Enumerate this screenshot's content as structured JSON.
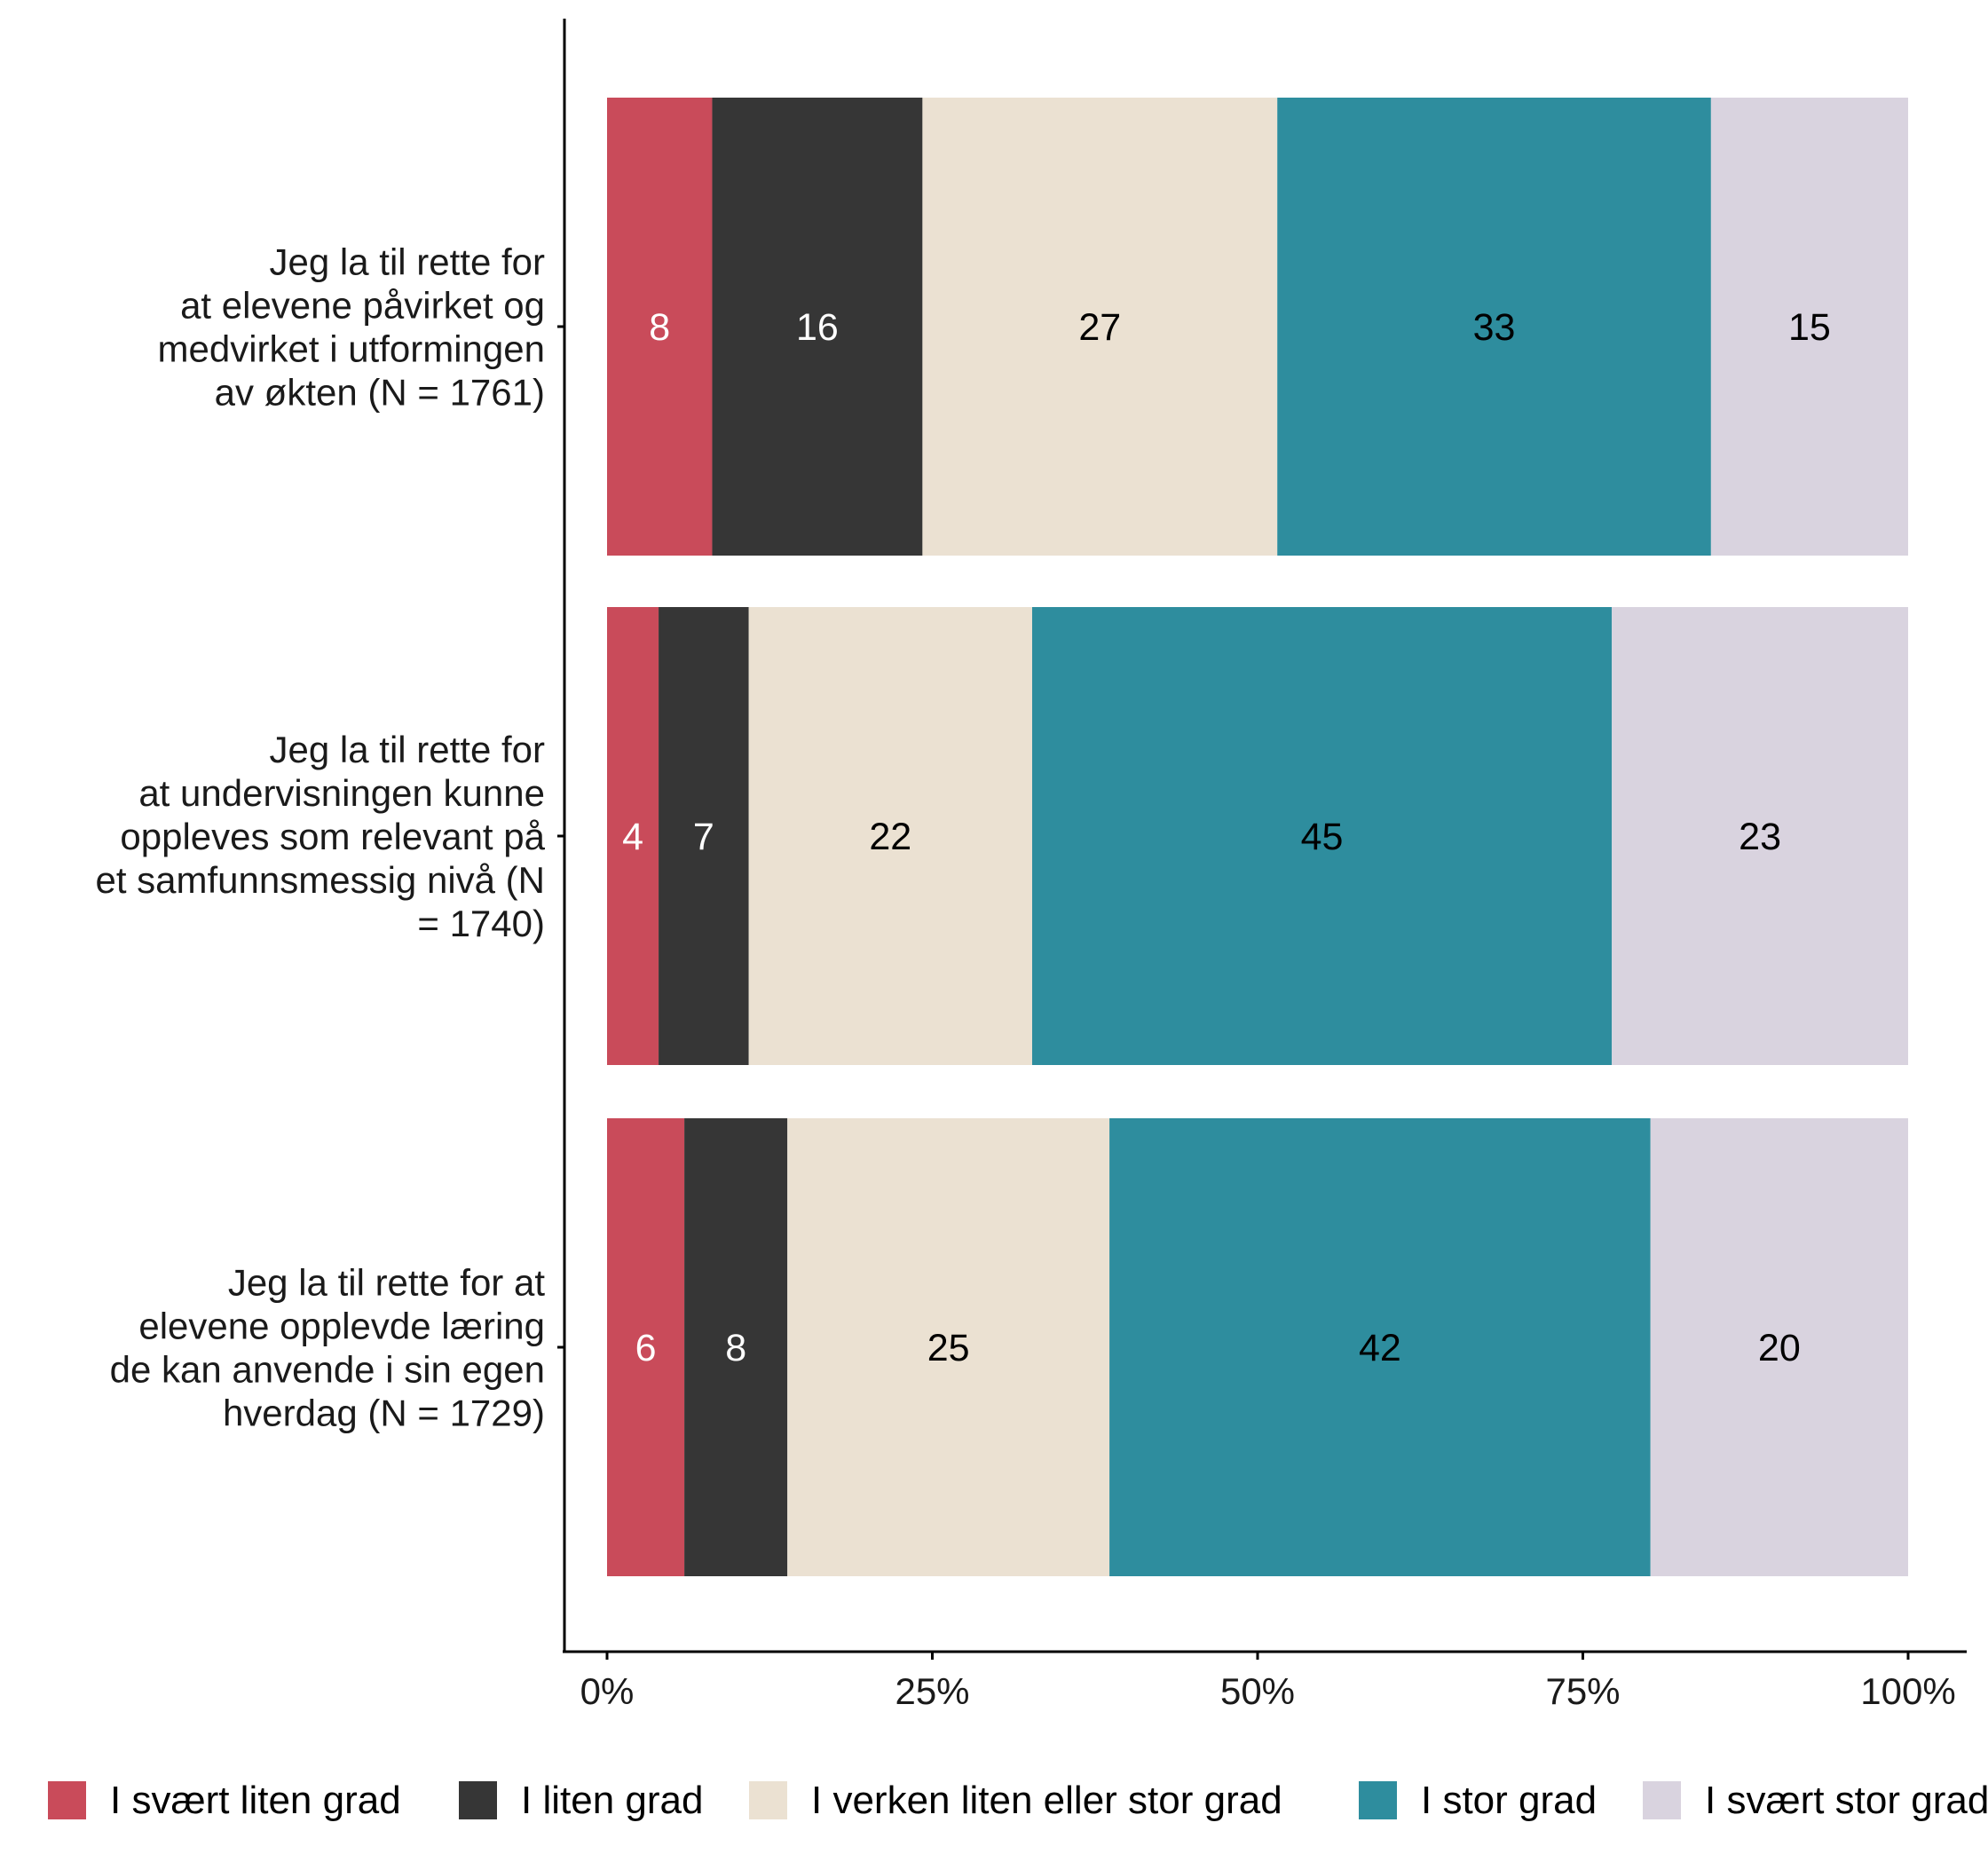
{
  "chart_data": {
    "type": "bar",
    "orientation": "horizontal",
    "stacked": true,
    "title": "",
    "xlabel": "",
    "ylabel": "",
    "xlim": [
      0,
      100
    ],
    "x_ticks": [
      "0%",
      "25%",
      "50%",
      "75%",
      "100%"
    ],
    "x_tick_values": [
      0,
      25,
      50,
      75,
      100
    ],
    "grid": false,
    "legend_position": "bottom",
    "categories": [
      [
        "Jeg la til rette for",
        "at elevene påvirket og",
        "medvirket i utformingen",
        "av økten (N = 1761)"
      ],
      [
        "Jeg la til rette for",
        "at undervisningen kunne",
        "oppleves som relevant på",
        "et samfunnsmessig nivå (N",
        "= 1740)"
      ],
      [
        "Jeg la til rette for at",
        "elevene opplevde læring",
        "de kan anvende i sin egen",
        "hverdag (N = 1729)"
      ]
    ],
    "series": [
      {
        "name": "I svært liten grad",
        "color": "#C94B5A",
        "label_color": "#FFFFFF",
        "values": [
          8,
          4,
          6
        ]
      },
      {
        "name": "I liten grad",
        "color": "#363636",
        "label_color": "#FFFFFF",
        "values": [
          16,
          7,
          8
        ]
      },
      {
        "name": "I verken liten eller stor grad",
        "color": "#EBE1D2",
        "label_color": "#000000",
        "values": [
          27,
          22,
          25
        ]
      },
      {
        "name": "I stor grad",
        "color": "#2E8D9E",
        "label_color": "#000000",
        "values": [
          33,
          45,
          42
        ]
      },
      {
        "name": "I svært stor grad",
        "color": "#D9D3DF",
        "label_color": "#000000",
        "values": [
          15,
          23,
          20
        ]
      }
    ]
  }
}
